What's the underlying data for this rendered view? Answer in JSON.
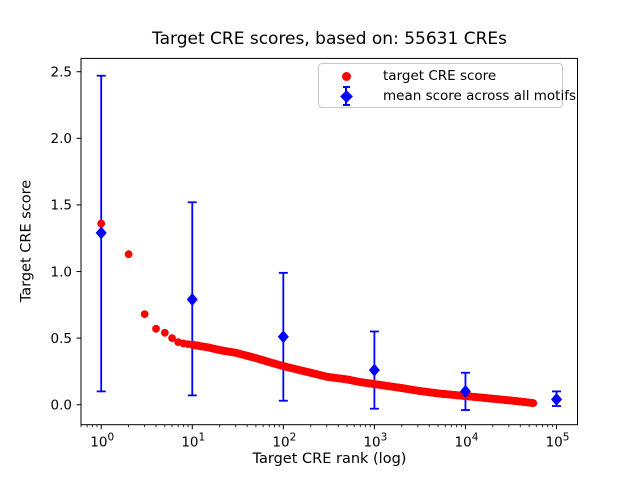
{
  "chart_data": {
    "type": "scatter",
    "title": "Target CRE scores, based on: 55631 CREs",
    "xlabel": "Target CRE rank (log)",
    "ylabel": "Target CRE score",
    "x_scale": "log",
    "grid": false,
    "legend_position": "upper right",
    "xlim": [
      0.6,
      170000
    ],
    "ylim": [
      -0.15,
      2.6
    ],
    "x_major_ticks": [
      1,
      10,
      100,
      1000,
      10000,
      100000
    ],
    "y_ticks": [
      0.0,
      0.5,
      1.0,
      1.5,
      2.0,
      2.5
    ],
    "series": [
      {
        "name": "target CRE score",
        "type": "scatter",
        "marker": "circle",
        "color": "#ff0000",
        "n_points": 55631,
        "curve_anchors": {
          "rank": [
            1,
            2,
            3,
            4,
            5,
            6,
            7,
            8,
            10,
            15,
            20,
            30,
            50,
            70,
            100,
            150,
            200,
            300,
            500,
            700,
            1000,
            2000,
            3000,
            5000,
            10000,
            20000,
            30000,
            45000,
            55631
          ],
          "score": [
            1.36,
            1.13,
            0.68,
            0.57,
            0.54,
            0.5,
            0.47,
            0.46,
            0.45,
            0.43,
            0.41,
            0.39,
            0.35,
            0.32,
            0.29,
            0.26,
            0.24,
            0.21,
            0.19,
            0.17,
            0.155,
            0.125,
            0.105,
            0.085,
            0.065,
            0.045,
            0.033,
            0.02,
            0.012
          ]
        }
      },
      {
        "name": "mean score across all motifs",
        "type": "errorbar",
        "marker": "diamond",
        "color": "#0000ff",
        "points": [
          {
            "rank": 1,
            "mean": 1.29,
            "lo": 0.1,
            "hi": 2.47
          },
          {
            "rank": 10,
            "mean": 0.79,
            "lo": 0.07,
            "hi": 1.52
          },
          {
            "rank": 100,
            "mean": 0.51,
            "lo": 0.03,
            "hi": 0.99
          },
          {
            "rank": 1000,
            "mean": 0.26,
            "lo": -0.03,
            "hi": 0.55
          },
          {
            "rank": 10000,
            "mean": 0.1,
            "lo": -0.04,
            "hi": 0.24
          },
          {
            "rank": 100000,
            "mean": 0.04,
            "lo": -0.01,
            "hi": 0.1
          }
        ]
      }
    ]
  }
}
